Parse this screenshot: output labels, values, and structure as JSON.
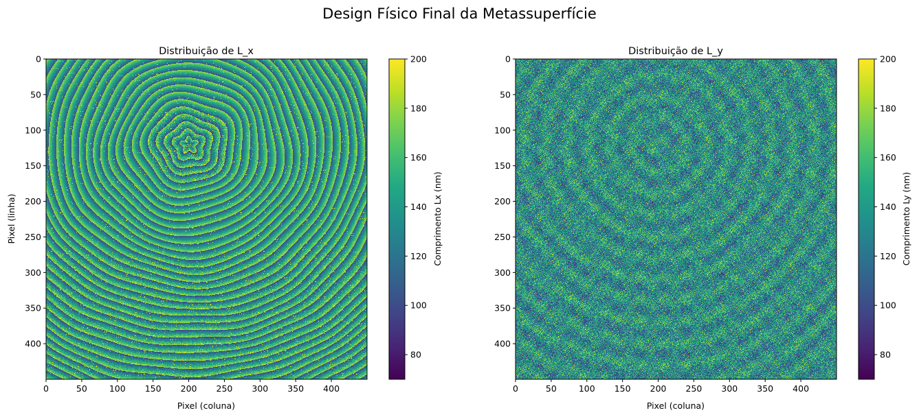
{
  "figure": {
    "suptitle": "Design Físico Final da Metassuperfície"
  },
  "chart_data": [
    {
      "type": "heatmap",
      "title": "Distribuição de L_x",
      "xlabel": "Pixel (coluna)",
      "ylabel": "Pixel (linha)",
      "xlim": [
        0,
        450
      ],
      "ylim": [
        450,
        0
      ],
      "xticks": [
        0,
        50,
        100,
        150,
        200,
        250,
        300,
        350,
        400
      ],
      "yticks": [
        0,
        50,
        100,
        150,
        200,
        250,
        300,
        350,
        400
      ],
      "colorbar": {
        "label": "Comprimento Lx (nm)",
        "range": [
          70,
          200
        ],
        "ticks": [
          80,
          100,
          120,
          140,
          160,
          180,
          200
        ]
      },
      "colormap": "viridis",
      "pattern": "concentric fringe rings centered near pixel (200, 120), noisy speckle toward bottom rows"
    },
    {
      "type": "heatmap",
      "title": "Distribuição de L_y",
      "xlabel": "Pixel (coluna)",
      "ylabel": "",
      "xlim": [
        0,
        450
      ],
      "ylim": [
        450,
        0
      ],
      "xticks": [
        0,
        50,
        100,
        150,
        200,
        250,
        300,
        350,
        400
      ],
      "yticks": [
        0,
        50,
        100,
        150,
        200,
        250,
        300,
        350,
        400
      ],
      "colorbar": {
        "label": "Comprimento Ly (nm)",
        "range": [
          70,
          200
        ],
        "ticks": [
          80,
          100,
          120,
          140,
          160,
          180,
          200
        ]
      },
      "colormap": "viridis",
      "pattern": "fine-grained speckle noise with faint periodic grid and faint rings near pixel (200, 120)"
    }
  ]
}
